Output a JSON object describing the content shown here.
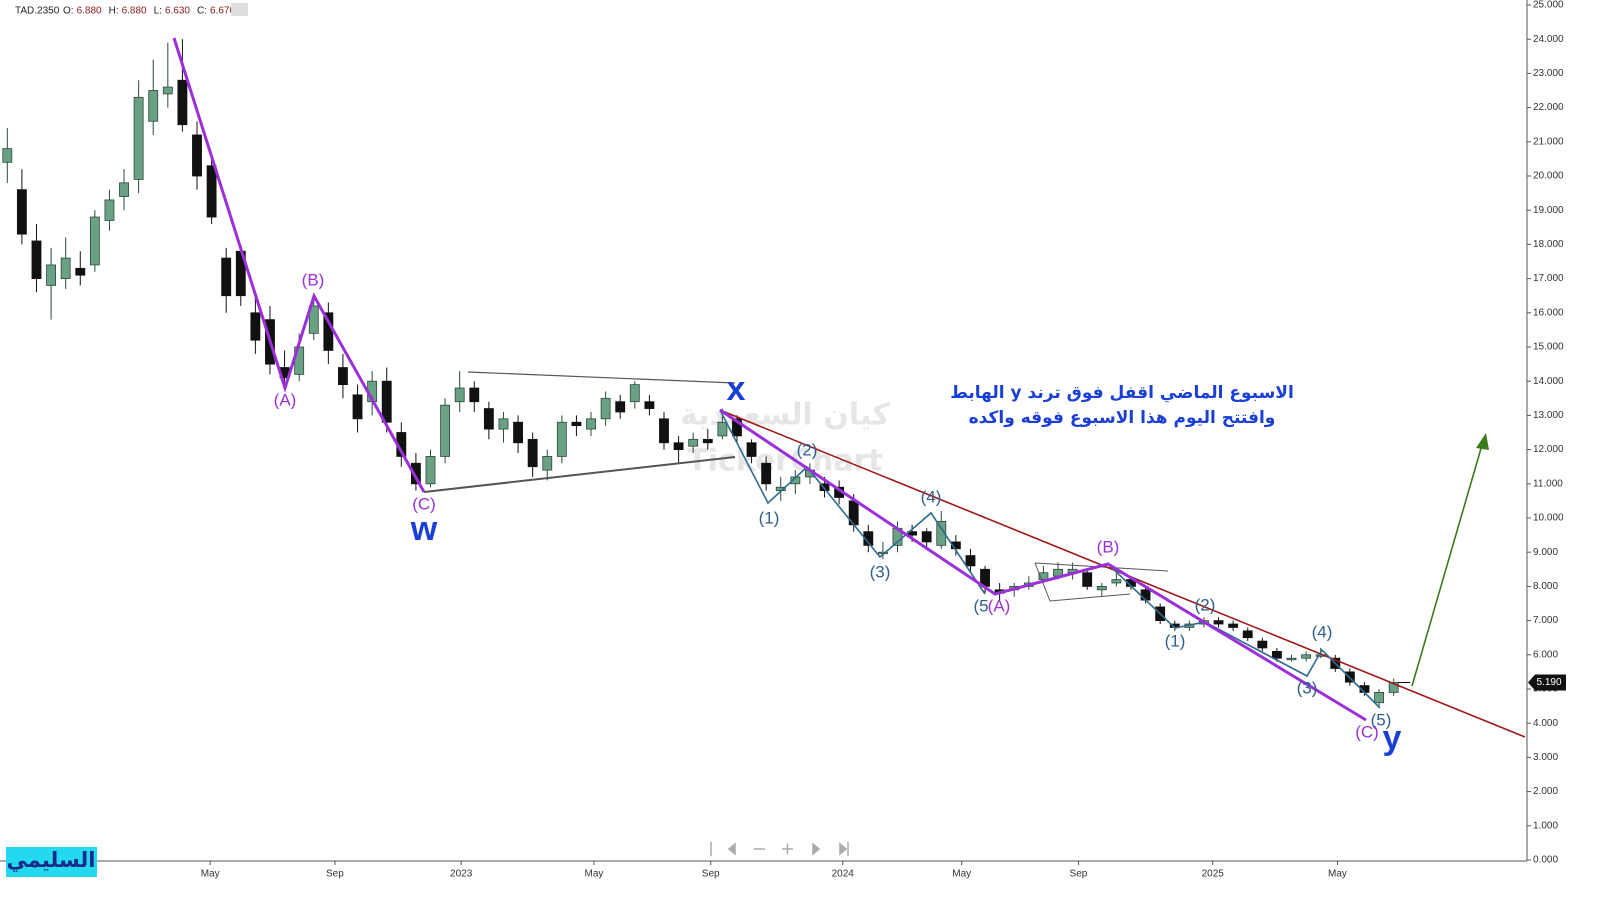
{
  "chart_data": {
    "type": "candlestick",
    "header": {
      "symbol": "TAD.2350",
      "fields": [
        "O:",
        "6.880",
        "H:",
        "6.880",
        "L:",
        "6.630",
        "C:",
        "6.670"
      ]
    },
    "annotations": {
      "text_line_1": "الاسبوع الماضي اقفل فوق ترند y الهابط",
      "text_line_2": "وافتتح اليوم هذا الاسبوع فوقه واكده",
      "watermark_1": "كيان السعودية",
      "watermark_2": "TickerChart",
      "author": "السليمي",
      "waves": [
        "(A)",
        "(B)",
        "(C)",
        "w",
        "x",
        "(1)",
        "(2)",
        "(3)",
        "(4)",
        "(5",
        "(A)",
        "(B)",
        "(1)",
        "(2)",
        "(3)",
        "(4)",
        "(5)",
        "(C)",
        "y"
      ]
    },
    "last_price": {
      "value": 5.19,
      "label": "5.190"
    },
    "xlim": [
      0,
      209
    ],
    "ylim": [
      0,
      25
    ],
    "xticks": [
      {
        "value": 28.8,
        "label": "May"
      },
      {
        "value": 45.9,
        "label": "Sep"
      },
      {
        "value": 63.2,
        "label": "2023"
      },
      {
        "value": 81.4,
        "label": "May"
      },
      {
        "value": 97.4,
        "label": "Sep"
      },
      {
        "value": 115.5,
        "label": "2024"
      },
      {
        "value": 131.8,
        "label": "May"
      },
      {
        "value": 147.8,
        "label": "Sep"
      },
      {
        "value": 166.2,
        "label": "2025"
      },
      {
        "value": 183.3,
        "label": "May"
      }
    ],
    "yticks": [
      {
        "value": 0,
        "label": "0.000"
      },
      {
        "value": 1,
        "label": "1.000"
      },
      {
        "value": 2,
        "label": "2.000"
      },
      {
        "value": 3,
        "label": "3.000"
      },
      {
        "value": 4,
        "label": "4.000"
      },
      {
        "value": 5,
        "label": "5.000"
      },
      {
        "value": 6,
        "label": "6.000"
      },
      {
        "value": 7,
        "label": "7.000"
      },
      {
        "value": 8,
        "label": "8.000"
      },
      {
        "value": 9,
        "label": "9.000"
      },
      {
        "value": 10,
        "label": "10.000"
      },
      {
        "value": 11,
        "label": "11.000"
      },
      {
        "value": 12,
        "label": "12.000"
      },
      {
        "value": 13,
        "label": "13.000"
      },
      {
        "value": 14,
        "label": "14.000"
      },
      {
        "value": 15,
        "label": "15.000"
      },
      {
        "value": 16,
        "label": "16.000"
      },
      {
        "value": 17,
        "label": "17.000"
      },
      {
        "value": 18,
        "label": "18.000"
      },
      {
        "value": 19,
        "label": "19.000"
      },
      {
        "value": 20,
        "label": "20.000"
      },
      {
        "value": 21,
        "label": "21.000"
      },
      {
        "value": 22,
        "label": "22.000"
      },
      {
        "value": 23,
        "label": "23.000"
      },
      {
        "value": 24,
        "label": "24.000"
      },
      {
        "value": 25,
        "label": "25.000"
      }
    ],
    "up_color": "#6aa084",
    "down_color": "#111111",
    "candles": [
      [
        1,
        20.4,
        21.4,
        19.8,
        20.8
      ],
      [
        3,
        19.6,
        20.2,
        18.0,
        18.3
      ],
      [
        5,
        18.1,
        18.6,
        16.6,
        17.0
      ],
      [
        7,
        16.8,
        17.9,
        15.8,
        17.4
      ],
      [
        9,
        17.0,
        18.2,
        16.7,
        17.6
      ],
      [
        11,
        17.3,
        17.8,
        16.8,
        17.1
      ],
      [
        13,
        17.4,
        19.0,
        17.2,
        18.8
      ],
      [
        15,
        18.7,
        19.6,
        18.4,
        19.3
      ],
      [
        17,
        19.4,
        20.2,
        19.0,
        19.8
      ],
      [
        19,
        19.9,
        22.8,
        19.5,
        22.3
      ],
      [
        21,
        21.6,
        23.4,
        21.2,
        22.5
      ],
      [
        23,
        22.4,
        23.9,
        22.0,
        22.6
      ],
      [
        25,
        22.8,
        24.0,
        21.3,
        21.5
      ],
      [
        27,
        21.2,
        21.6,
        19.6,
        20.0
      ],
      [
        29,
        20.3,
        20.6,
        18.6,
        18.8
      ],
      [
        31,
        17.6,
        17.9,
        16.0,
        16.5
      ],
      [
        33,
        17.8,
        18.0,
        16.2,
        16.5
      ],
      [
        35,
        16.0,
        16.5,
        14.8,
        15.2
      ],
      [
        37,
        15.8,
        16.2,
        14.2,
        14.5
      ],
      [
        39,
        14.4,
        14.9,
        13.8,
        14.1
      ],
      [
        41,
        14.2,
        15.4,
        14.0,
        15.0
      ],
      [
        43,
        15.4,
        16.5,
        15.2,
        16.2
      ],
      [
        45,
        16.0,
        16.3,
        14.5,
        14.9
      ],
      [
        47,
        14.4,
        14.8,
        13.5,
        13.9
      ],
      [
        49,
        13.6,
        13.9,
        12.5,
        12.9
      ],
      [
        51,
        13.4,
        14.3,
        13.0,
        14.0
      ],
      [
        53,
        14.0,
        14.4,
        12.5,
        12.8
      ],
      [
        55,
        12.5,
        12.8,
        11.5,
        11.8
      ],
      [
        57,
        11.6,
        11.9,
        10.8,
        11.0
      ],
      [
        59,
        11.0,
        12.0,
        10.9,
        11.8
      ],
      [
        61,
        11.8,
        13.5,
        11.6,
        13.3
      ],
      [
        63,
        13.4,
        14.3,
        13.1,
        13.8
      ],
      [
        65,
        13.8,
        14.0,
        13.1,
        13.4
      ],
      [
        67,
        13.2,
        13.4,
        12.3,
        12.6
      ],
      [
        69,
        12.6,
        13.1,
        12.2,
        12.9
      ],
      [
        71,
        12.8,
        13.0,
        11.9,
        12.2
      ],
      [
        73,
        12.3,
        12.5,
        11.2,
        11.5
      ],
      [
        75,
        11.4,
        12.0,
        11.1,
        11.8
      ],
      [
        77,
        11.8,
        13.0,
        11.6,
        12.8
      ],
      [
        79,
        12.8,
        13.0,
        12.4,
        12.7
      ],
      [
        81,
        12.6,
        13.1,
        12.4,
        12.9
      ],
      [
        83,
        12.9,
        13.7,
        12.7,
        13.5
      ],
      [
        85,
        13.4,
        13.6,
        12.9,
        13.1
      ],
      [
        87,
        13.4,
        14.0,
        13.2,
        13.9
      ],
      [
        89,
        13.4,
        13.6,
        13.0,
        13.2
      ],
      [
        91,
        12.9,
        13.1,
        12.0,
        12.2
      ],
      [
        93,
        12.2,
        12.4,
        11.6,
        12.0
      ],
      [
        95,
        12.1,
        12.5,
        11.9,
        12.3
      ],
      [
        97,
        12.3,
        12.6,
        12.0,
        12.2
      ],
      [
        99,
        12.4,
        13.2,
        12.3,
        12.8
      ],
      [
        101,
        12.9,
        13.0,
        12.2,
        12.4
      ],
      [
        103,
        12.2,
        12.3,
        11.6,
        11.8
      ],
      [
        105,
        11.6,
        11.8,
        10.8,
        11.0
      ],
      [
        107,
        10.8,
        11.2,
        10.5,
        10.9
      ],
      [
        109,
        11.0,
        11.4,
        10.7,
        11.2
      ],
      [
        111,
        11.2,
        11.6,
        11.0,
        11.4
      ],
      [
        113,
        11.0,
        11.2,
        10.6,
        10.8
      ],
      [
        115,
        10.9,
        11.1,
        10.4,
        10.6
      ],
      [
        117,
        10.5,
        10.7,
        9.6,
        9.8
      ],
      [
        119,
        9.6,
        9.8,
        9.0,
        9.2
      ],
      [
        121,
        9.0,
        9.3,
        8.8,
        9.0
      ],
      [
        123,
        9.2,
        9.9,
        9.0,
        9.7
      ],
      [
        125,
        9.6,
        9.8,
        9.3,
        9.5
      ],
      [
        127,
        9.6,
        9.7,
        9.1,
        9.3
      ],
      [
        129,
        9.2,
        10.2,
        9.1,
        9.9
      ],
      [
        131,
        9.3,
        9.5,
        8.9,
        9.1
      ],
      [
        133,
        8.9,
        9.1,
        8.4,
        8.6
      ],
      [
        135,
        8.5,
        8.6,
        7.8,
        8.0
      ],
      [
        137,
        7.9,
        8.1,
        7.6,
        7.8
      ],
      [
        139,
        7.9,
        8.1,
        7.7,
        8.0
      ],
      [
        141,
        8.0,
        8.3,
        7.9,
        8.1
      ],
      [
        143,
        8.2,
        8.6,
        8.1,
        8.4
      ],
      [
        145,
        8.3,
        8.7,
        8.2,
        8.5
      ],
      [
        147,
        8.4,
        8.7,
        8.2,
        8.5
      ],
      [
        149,
        8.4,
        8.5,
        7.9,
        8.0
      ],
      [
        151,
        7.9,
        8.1,
        7.7,
        8.0
      ],
      [
        153,
        8.1,
        8.4,
        8.0,
        8.2
      ],
      [
        155,
        8.2,
        8.3,
        7.9,
        8.0
      ],
      [
        157,
        7.9,
        8.0,
        7.5,
        7.6
      ],
      [
        159,
        7.4,
        7.5,
        6.9,
        7.0
      ],
      [
        161,
        6.9,
        7.0,
        6.7,
        6.8
      ],
      [
        163,
        6.8,
        7.0,
        6.7,
        6.9
      ],
      [
        165,
        6.9,
        7.1,
        6.8,
        7.0
      ],
      [
        167,
        7.0,
        7.1,
        6.8,
        6.9
      ],
      [
        169,
        6.9,
        7.0,
        6.7,
        6.8
      ],
      [
        171,
        6.7,
        6.8,
        6.4,
        6.5
      ],
      [
        173,
        6.4,
        6.5,
        6.1,
        6.2
      ],
      [
        175,
        6.1,
        6.2,
        5.8,
        5.9
      ],
      [
        177,
        5.9,
        6.0,
        5.8,
        5.9
      ],
      [
        179,
        5.9,
        6.1,
        5.8,
        6.0
      ],
      [
        181,
        6.0,
        6.2,
        5.9,
        6.0
      ],
      [
        183,
        5.9,
        6.0,
        5.5,
        5.6
      ],
      [
        185,
        5.5,
        5.6,
        5.1,
        5.2
      ],
      [
        187,
        5.1,
        5.2,
        4.8,
        4.9
      ],
      [
        189,
        4.6,
        5.0,
        4.5,
        4.9
      ],
      [
        191,
        4.9,
        5.3,
        4.8,
        5.19
      ]
    ]
  }
}
